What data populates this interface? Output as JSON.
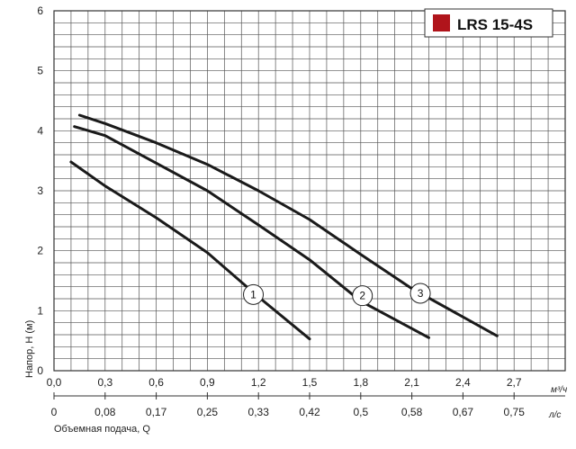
{
  "chart_data": {
    "type": "line",
    "title": "LRS 15-4S",
    "title_marker_color": "#b0141b",
    "ylabel": "Напор, H (м)",
    "xlabel": "Объемная подача, Q",
    "x_unit_top": "м³/ч",
    "x_unit_bottom": "л/с",
    "ylim": [
      0,
      6
    ],
    "xlim": [
      0,
      3.0
    ],
    "y_ticks": [
      "0",
      "1",
      "2",
      "3",
      "4",
      "5",
      "6"
    ],
    "x_ticks_m3h": [
      "0,0",
      "0,3",
      "0,6",
      "0,9",
      "1,2",
      "1,5",
      "1,8",
      "2,1",
      "2,4",
      "2,7"
    ],
    "x_ticks_ls": [
      "0",
      "0,08",
      "0,17",
      "0,25",
      "0,33",
      "0,42",
      "0,5",
      "0,58",
      "0,67",
      "0,75"
    ],
    "grid": true,
    "series": [
      {
        "name": "1",
        "points": [
          [
            0.1,
            3.48
          ],
          [
            0.3,
            3.08
          ],
          [
            0.6,
            2.55
          ],
          [
            0.9,
            1.97
          ],
          [
            1.2,
            1.23
          ],
          [
            1.5,
            0.53
          ]
        ],
        "label_at": [
          1.17,
          1.27
        ]
      },
      {
        "name": "2",
        "points": [
          [
            0.12,
            4.07
          ],
          [
            0.3,
            3.92
          ],
          [
            0.6,
            3.46
          ],
          [
            0.9,
            3.0
          ],
          [
            1.2,
            2.43
          ],
          [
            1.5,
            1.85
          ],
          [
            1.8,
            1.16
          ],
          [
            2.2,
            0.55
          ]
        ],
        "label_at": [
          1.81,
          1.25
        ]
      },
      {
        "name": "3",
        "points": [
          [
            0.15,
            4.26
          ],
          [
            0.3,
            4.12
          ],
          [
            0.6,
            3.8
          ],
          [
            0.9,
            3.44
          ],
          [
            1.2,
            3.0
          ],
          [
            1.5,
            2.52
          ],
          [
            1.8,
            1.94
          ],
          [
            2.1,
            1.37
          ],
          [
            2.6,
            0.58
          ]
        ],
        "label_at": [
          2.15,
          1.29
        ]
      }
    ]
  }
}
